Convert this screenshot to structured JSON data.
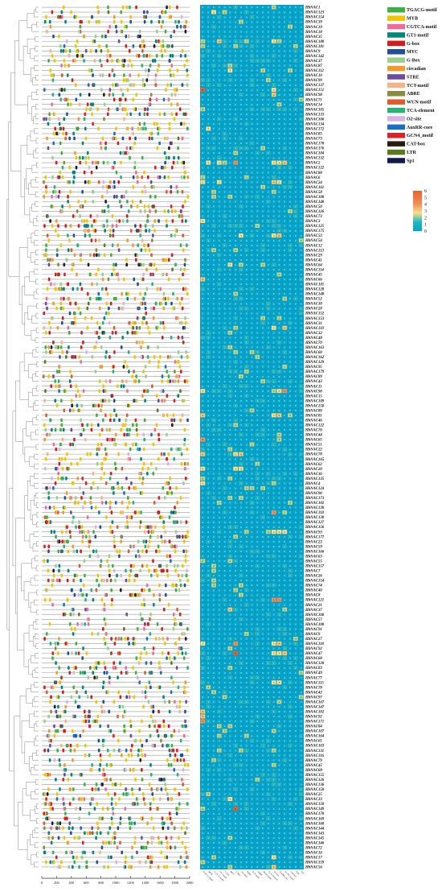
{
  "genes": [
    "HbNAC1",
    "HbNAC123",
    "HbNAC154",
    "HbNAC39",
    "HbNAC19",
    "HbNAC18",
    "HbNAC35",
    "HbNAC180",
    "HbNAC181",
    "HbNAC9",
    "HbNAC142",
    "HbNAC37",
    "HbNAC87",
    "HbNAC112",
    "HbNAC10",
    "HbNAC99",
    "HbNAC137",
    "HbNAC151",
    "HbNAC98",
    "HbNAC71",
    "HbNAC14",
    "HbNAC105",
    "HbNAC133",
    "HbNAC106",
    "HbNAC134",
    "HbNAC172",
    "HbNAC85",
    "HbNAC73",
    "HbNAC178",
    "HbNAC176",
    "HbNAC104",
    "HbNAC132",
    "HbNAC2",
    "HbNAC122",
    "HbNAC88",
    "HbNAC6",
    "HbNAC24",
    "HbNAC161",
    "HbNAC58",
    "HbNAC108",
    "HbNAC140",
    "HbNAC50",
    "HbNAC126",
    "HbNAC73",
    "HbNAC3",
    "HbNAC125",
    "HbNAC175",
    "HbNAC53",
    "HbNAC54",
    "HbNAC12",
    "HbNAC113",
    "HbNAC29",
    "HbNAC41",
    "HbNAC64",
    "HbNAC114",
    "HbNAC45",
    "HbNAC66",
    "HbNAC101",
    "HbNAC128",
    "HbNAC148",
    "HbNAC52",
    "HbNAC30",
    "HbNAC28",
    "HbNAC152",
    "HbNAC153",
    "HbNAC31",
    "HbNAC119",
    "HbNAC32",
    "HbNAC48",
    "HbNAC70",
    "HbNAC163",
    "HbNAC60",
    "HbNAC162",
    "HbNAC129",
    "HbNAC95",
    "HbNAC179",
    "HbNAC89",
    "HbNAC43",
    "HbNAC11",
    "HbNAC90",
    "HbNAC15",
    "HbNAC109",
    "HbNAC150",
    "HbNAC80",
    "HbNAC81",
    "HbNAC46",
    "HbNAC122",
    "HbNAC76",
    "HbNAC44",
    "HbNAC65",
    "HbNAC51",
    "HbNAC22",
    "HbNAC78",
    "HbNAC165",
    "HbNAC62",
    "HbNAC20",
    "HbNAC36",
    "HbNAC135",
    "HbNAC4",
    "HbNAC124",
    "HbNAC96",
    "HbNAC173",
    "HbNAC102",
    "HbNAC130",
    "HbNAC110",
    "HbNAC138",
    "HbNAC127",
    "HbNAC156",
    "HbNAC93",
    "HbNAC177",
    "HbNAC23",
    "HbNAC59",
    "HbNAC166",
    "HbNAC63",
    "HbNAC55",
    "HbNAC157",
    "HbNAC7",
    "HbNAC26",
    "HbNAC154",
    "HbNAC74",
    "HbNAC40",
    "HbNAC8",
    "HbNAC121",
    "HbNAC21",
    "HbNAC37",
    "HbNAC160",
    "HbNAC57",
    "HbNAC100",
    "HbNAC91",
    "HbNAC9",
    "HbNAC27",
    "HbNAC118",
    "HbNAC92",
    "HbNAC47",
    "HbNAC68",
    "HbNAC120",
    "HbNAC83",
    "HbNAC49",
    "HbNAC77",
    "HbNAC115",
    "HbNAC78",
    "HbNAC42",
    "HbNAC97",
    "HbNAC167",
    "HbNAC147",
    "HbNAC182",
    "HbNAC92",
    "HbNAC171",
    "HbNAC84",
    "HbNAC107",
    "HbNAC164",
    "HbNAC61",
    "HbNAC103",
    "HbNAC131",
    "HbNAC116",
    "HbNAC79",
    "HbNAC45",
    "HbNAC68",
    "HbNAC155",
    "HbNAC126",
    "HbNAC136",
    "HbNAC150",
    "HbNAC25",
    "HbNAC33",
    "HbNAC158",
    "HbNAC149",
    "HbNAC170",
    "HbNAC169",
    "HbNAC168",
    "HbNAC144",
    "HbNAC143",
    "HbNAC145",
    "HbNAC146",
    "HbNAC72",
    "HbNAC16",
    "HbNAC17",
    "HbNAC159",
    "HbNAC56"
  ],
  "elements": [
    {
      "name": "TGACG-motif",
      "color": "#3cb33c"
    },
    {
      "name": "MYB",
      "color": "#f2c500"
    },
    {
      "name": "CGTCA-motif",
      "color": "#f06a9a"
    },
    {
      "name": "GT1-motif",
      "color": "#00877a"
    },
    {
      "name": "G-box",
      "color": "#d71a1a"
    },
    {
      "name": "MYC",
      "color": "#1f4e9c"
    },
    {
      "name": "G-Box",
      "color": "#9bd08c"
    },
    {
      "name": "circadian",
      "color": "#f29a2e"
    },
    {
      "name": "STRE",
      "color": "#6a4c9c"
    },
    {
      "name": "TCT-motif",
      "color": "#f4b48a"
    },
    {
      "name": "ABRE",
      "color": "#8b8b3c"
    },
    {
      "name": "WUN-motif",
      "color": "#e05a2b"
    },
    {
      "name": "TCA-element",
      "color": "#29b37a"
    },
    {
      "name": "O2-site",
      "color": "#d8b4e2"
    },
    {
      "name": "AuxRR-core",
      "color": "#1a6fc4"
    },
    {
      "name": "GCN4_motif",
      "color": "#e31e24"
    },
    {
      "name": "CAT-box",
      "color": "#2b1a10"
    },
    {
      "name": "LTR",
      "color": "#5a7a1e"
    },
    {
      "name": "Sp1",
      "color": "#111a4a"
    }
  ],
  "axis": {
    "ticks": [
      "0",
      "200",
      "400",
      "600",
      "800",
      "1000",
      "1200",
      "1400",
      "1600",
      "1800",
      "2000"
    ]
  },
  "colorbar": {
    "labels": [
      "6",
      "5",
      "4",
      "3",
      "2",
      "1",
      "0"
    ]
  },
  "heat_columns": [
    "TGACG-motif",
    "MYB",
    "CGTCA-motif",
    "GT1-motif",
    "G-box",
    "MYC",
    "G-Box",
    "circadian",
    "STRE",
    "TCT-motif",
    "ABRE",
    "WUN-motif",
    "TCA-element",
    "O2-site",
    "AuxRR-core",
    "GCN4_motif",
    "CAT-box",
    "LTR",
    "Sp1"
  ],
  "heat_highlights": [
    {
      "row": 1,
      "col": 2,
      "v": 3
    },
    {
      "row": 1,
      "col": 4,
      "v": 2
    },
    {
      "row": 7,
      "col": 0,
      "v": 2
    },
    {
      "row": 7,
      "col": 3,
      "v": 4
    },
    {
      "row": 7,
      "col": 13,
      "v": 3
    },
    {
      "row": 7,
      "col": 14,
      "v": 2
    },
    {
      "row": 8,
      "col": 0,
      "v": 2
    },
    {
      "row": 13,
      "col": 5,
      "v": 3
    },
    {
      "row": 17,
      "col": 0,
      "v": 6
    },
    {
      "row": 17,
      "col": 13,
      "v": 3
    },
    {
      "row": 18,
      "col": 13,
      "v": 4
    },
    {
      "row": 25,
      "col": 1,
      "v": 3
    },
    {
      "row": 32,
      "col": 1,
      "v": 3
    },
    {
      "row": 32,
      "col": 3,
      "v": 3
    },
    {
      "row": 32,
      "col": 6,
      "v": 5
    },
    {
      "row": 32,
      "col": 13,
      "v": 3
    },
    {
      "row": 32,
      "col": 14,
      "v": 3
    },
    {
      "row": 32,
      "col": 15,
      "v": 4
    },
    {
      "row": 36,
      "col": 0,
      "v": 3
    },
    {
      "row": 36,
      "col": 3,
      "v": 3
    },
    {
      "row": 36,
      "col": 13,
      "v": 4
    },
    {
      "row": 36,
      "col": 14,
      "v": 3
    },
    {
      "row": 44,
      "col": 0,
      "v": 3
    },
    {
      "row": 47,
      "col": 7,
      "v": 3
    },
    {
      "row": 47,
      "col": 13,
      "v": 3
    },
    {
      "row": 47,
      "col": 14,
      "v": 4
    },
    {
      "row": 53,
      "col": 5,
      "v": 3
    },
    {
      "row": 56,
      "col": 0,
      "v": 4
    },
    {
      "row": 66,
      "col": 13,
      "v": 3
    },
    {
      "row": 66,
      "col": 15,
      "v": 4
    },
    {
      "row": 79,
      "col": 0,
      "v": 3
    },
    {
      "row": 79,
      "col": 13,
      "v": 2
    },
    {
      "row": 79,
      "col": 14,
      "v": 3
    },
    {
      "row": 79,
      "col": 15,
      "v": 5
    },
    {
      "row": 84,
      "col": 0,
      "v": 4
    },
    {
      "row": 84,
      "col": 13,
      "v": 3
    },
    {
      "row": 84,
      "col": 14,
      "v": 4
    },
    {
      "row": 89,
      "col": 0,
      "v": 5
    },
    {
      "row": 92,
      "col": 0,
      "v": 4
    },
    {
      "row": 92,
      "col": 6,
      "v": 3
    },
    {
      "row": 92,
      "col": 7,
      "v": 4
    },
    {
      "row": 95,
      "col": 0,
      "v": 3
    },
    {
      "row": 95,
      "col": 6,
      "v": 3
    },
    {
      "row": 95,
      "col": 7,
      "v": 3
    },
    {
      "row": 98,
      "col": 0,
      "v": 3
    },
    {
      "row": 104,
      "col": 13,
      "v": 5
    },
    {
      "row": 108,
      "col": 13,
      "v": 3
    },
    {
      "row": 108,
      "col": 14,
      "v": 3
    },
    {
      "row": 108,
      "col": 15,
      "v": 3
    },
    {
      "row": 122,
      "col": 13,
      "v": 5
    },
    {
      "row": 122,
      "col": 14,
      "v": 5
    },
    {
      "row": 124,
      "col": 5,
      "v": 4
    },
    {
      "row": 131,
      "col": 0,
      "v": 3
    },
    {
      "row": 131,
      "col": 6,
      "v": 5
    },
    {
      "row": 131,
      "col": 13,
      "v": 3
    },
    {
      "row": 131,
      "col": 14,
      "v": 4
    },
    {
      "row": 133,
      "col": 6,
      "v": 6
    },
    {
      "row": 133,
      "col": 13,
      "v": 3
    },
    {
      "row": 133,
      "col": 14,
      "v": 3
    },
    {
      "row": 133,
      "col": 15,
      "v": 4
    },
    {
      "row": 139,
      "col": 13,
      "v": 3
    },
    {
      "row": 139,
      "col": 14,
      "v": 3
    },
    {
      "row": 145,
      "col": 0,
      "v": 4
    },
    {
      "row": 146,
      "col": 0,
      "v": 4
    },
    {
      "row": 147,
      "col": 0,
      "v": 5
    },
    {
      "row": 163,
      "col": 5,
      "v": 3
    },
    {
      "row": 165,
      "col": 6,
      "v": 6
    },
    {
      "row": 175,
      "col": 13,
      "v": 3
    },
    {
      "row": 177,
      "col": 13,
      "v": 4
    }
  ]
}
